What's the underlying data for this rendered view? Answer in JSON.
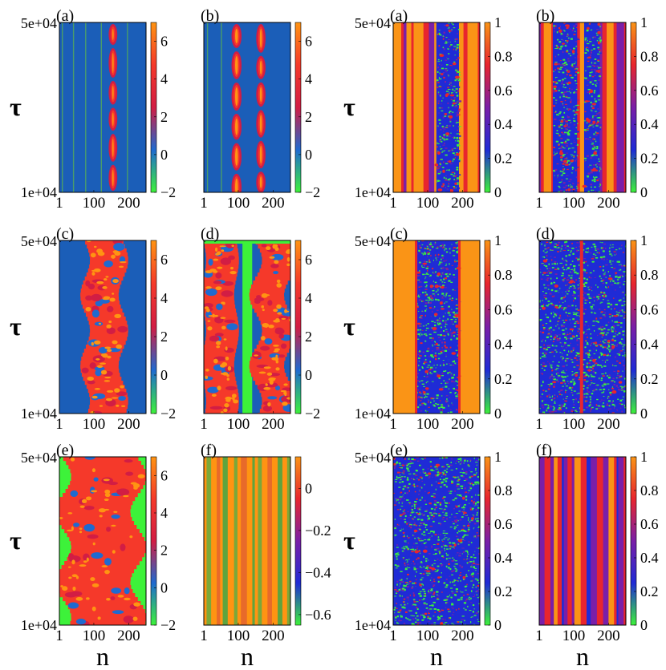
{
  "palette": {
    "phase": [
      "#3df23a",
      "#1f6ad0",
      "#d21d44",
      "#f5392a",
      "#ff9412"
    ],
    "order": [
      "#3df23a",
      "#1f2bd6",
      "#7a1fa8",
      "#e8252e",
      "#fa9416"
    ],
    "bg_blue": "#1b5eb8",
    "stripe_green": "#4a9c6a",
    "orange": "#fa9416",
    "red": "#e8252e"
  },
  "axes": {
    "x_label": "n",
    "y_label": "τ",
    "x_ticks": [
      "1",
      "100",
      "200"
    ],
    "y_top": "5e+04",
    "y_bottom": "1e+04"
  },
  "chart_data": [
    {
      "type": "heatmap",
      "panel": "(a)",
      "group": "phase",
      "x_range": [
        1,
        250
      ],
      "y_range": [
        10000,
        50000
      ],
      "colorbar_range": [
        -2,
        7
      ],
      "colorbar_ticks": [
        "6",
        "4",
        "2",
        "0",
        "−2"
      ],
      "structure": "single breather",
      "centers": [
        155
      ]
    },
    {
      "type": "heatmap",
      "panel": "(b)",
      "group": "phase",
      "x_range": [
        1,
        250
      ],
      "y_range": [
        10000,
        50000
      ],
      "colorbar_range": [
        -2,
        7
      ],
      "colorbar_ticks": [
        "6",
        "4",
        "2",
        "0",
        "−2"
      ],
      "structure": "two breathers",
      "centers": [
        95,
        165
      ]
    },
    {
      "type": "heatmap",
      "panel": "(c)",
      "group": "phase",
      "x_range": [
        1,
        250
      ],
      "y_range": [
        10000,
        50000
      ],
      "colorbar_range": [
        -2,
        7
      ],
      "colorbar_ticks": [
        "6",
        "4",
        "2",
        "0",
        "−2"
      ],
      "structure": "wide oscillating band",
      "range": [
        75,
        185
      ]
    },
    {
      "type": "heatmap",
      "panel": "(d)",
      "group": "phase",
      "x_range": [
        1,
        250
      ],
      "y_range": [
        10000,
        50000
      ],
      "colorbar_range": [
        -2,
        7
      ],
      "colorbar_ticks": [
        "6",
        "4",
        "2",
        "0",
        "−2"
      ],
      "structure": "two oscillating bands",
      "ranges": [
        [
          1,
          90
        ],
        [
          150,
          250
        ]
      ]
    },
    {
      "type": "heatmap",
      "panel": "(e)",
      "group": "phase",
      "x_range": [
        1,
        250
      ],
      "y_range": [
        10000,
        50000
      ],
      "colorbar_range": [
        -2,
        7
      ],
      "colorbar_ticks": [
        "6",
        "4",
        "2",
        "0",
        "−2"
      ],
      "structure": "broad turbulent band",
      "range": [
        15,
        225
      ]
    },
    {
      "type": "heatmap",
      "panel": "(f)",
      "group": "phase",
      "x_range": [
        1,
        250
      ],
      "y_range": [
        10000,
        50000
      ],
      "colorbar_range": [
        -0.65,
        0.15
      ],
      "colorbar_ticks": [
        "0",
        "−0.2",
        "−0.4",
        "−0.6"
      ],
      "structure": "static stripes"
    },
    {
      "type": "heatmap",
      "panel": "(a)",
      "group": "order",
      "x_range": [
        1,
        250
      ],
      "y_range": [
        10000,
        50000
      ],
      "colorbar_range": [
        0,
        1
      ],
      "colorbar_ticks": [
        "1",
        "0.8",
        "0.6",
        "0.4",
        "0.2",
        "0"
      ],
      "structure": "incoherent region",
      "range": [
        125,
        190
      ]
    },
    {
      "type": "heatmap",
      "panel": "(b)",
      "group": "order",
      "x_range": [
        1,
        250
      ],
      "y_range": [
        10000,
        50000
      ],
      "colorbar_range": [
        0,
        1
      ],
      "colorbar_ticks": [
        "1",
        "0.8",
        "0.6",
        "0.4",
        "0.2",
        "0"
      ],
      "structure": "two incoherent regions",
      "ranges": [
        [
          40,
          110
        ],
        [
          130,
          175
        ]
      ]
    },
    {
      "type": "heatmap",
      "panel": "(c)",
      "group": "order",
      "x_range": [
        1,
        250
      ],
      "y_range": [
        10000,
        50000
      ],
      "colorbar_range": [
        0,
        1
      ],
      "colorbar_ticks": [
        "1",
        "0.8",
        "0.6",
        "0.4",
        "0.2",
        "0"
      ],
      "structure": "wide incoherent region",
      "range": [
        70,
        190
      ]
    },
    {
      "type": "heatmap",
      "panel": "(d)",
      "group": "order",
      "x_range": [
        1,
        250
      ],
      "y_range": [
        10000,
        50000
      ],
      "colorbar_range": [
        0,
        1
      ],
      "colorbar_ticks": [
        "1",
        "0.8",
        "0.6",
        "0.4",
        "0.2",
        "0"
      ],
      "structure": "mostly incoherent"
    },
    {
      "type": "heatmap",
      "panel": "(e)",
      "group": "order",
      "x_range": [
        1,
        250
      ],
      "y_range": [
        10000,
        50000
      ],
      "colorbar_range": [
        0,
        1
      ],
      "colorbar_ticks": [
        "1",
        "0.8",
        "0.6",
        "0.4",
        "0.2",
        "0"
      ],
      "structure": "fully incoherent"
    },
    {
      "type": "heatmap",
      "panel": "(f)",
      "group": "order",
      "x_range": [
        1,
        250
      ],
      "y_range": [
        10000,
        50000
      ],
      "colorbar_range": [
        0,
        1
      ],
      "colorbar_ticks": [
        "1",
        "0.8",
        "0.6",
        "0.4",
        "0.2",
        "0"
      ],
      "structure": "static stripes"
    }
  ]
}
